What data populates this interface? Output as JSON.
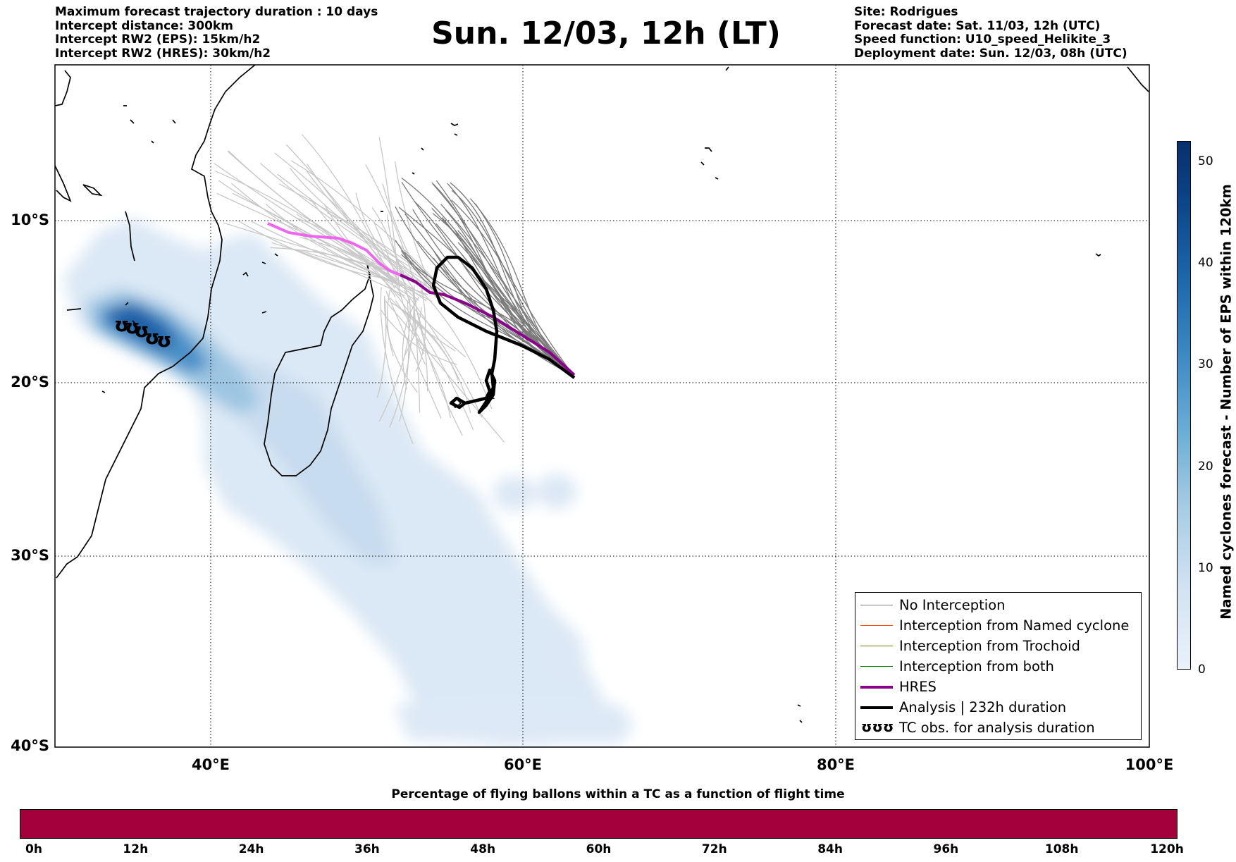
{
  "header": {
    "left_lines": [
      "Maximum forecast trajectory duration : 10 days",
      "Intercept distance: 300km",
      "Intercept RW2 (EPS):  15km/h2",
      "Intercept RW2 (HRES): 30km/h2"
    ],
    "title": "Sun. 12/03, 12h (LT)",
    "right_lines": [
      "Site: Rodrigues",
      "Forecast date: Sat. 11/03, 12h (UTC)",
      "Speed function: U10_speed_Helikite_3",
      "Deployment date: Sun. 12/03, 08h (UTC)"
    ]
  },
  "map": {
    "lat_ticks": [
      "10°S",
      "20°S",
      "30°S",
      "40°S"
    ],
    "lon_ticks": [
      "40°E",
      "60°E",
      "80°E",
      "100°E"
    ],
    "extent": {
      "lon_min": 30,
      "lon_max": 100,
      "lat_min": -40,
      "lat_max": -1.5
    },
    "grid": "dotted",
    "legend": {
      "position": "bottom-right",
      "items": [
        {
          "label": "No Interception",
          "color": "#808080",
          "width": 1.5
        },
        {
          "label": "Interception from Named cyclone",
          "color": "#ff4500",
          "width": 1.5
        },
        {
          "label": "Interception from Trochoid",
          "color": "#808000",
          "width": 1.5
        },
        {
          "label": "Interception from both",
          "color": "#008000",
          "width": 1.5
        },
        {
          "label": "HRES",
          "color": "#8b008b",
          "width": 4
        },
        {
          "label": "Analysis | 232h duration",
          "color": "#000000",
          "width": 4
        },
        {
          "label": "TC obs. for analysis duration",
          "color": "#000000",
          "symbol": "ʊʊʊ"
        }
      ]
    },
    "colors": {
      "land_outline": "#000000",
      "density": "#08306b",
      "eps_track": "#808080",
      "hres_track": "#8b008b",
      "hres_early": "#ee66ee",
      "analysis": "#000000"
    }
  },
  "colorbar": {
    "label": "Named cyclones forecast - Number of EPS within 120km",
    "ticks": [
      "0",
      "10",
      "20",
      "30",
      "40",
      "50"
    ],
    "range": [
      0,
      52
    ]
  },
  "time_bar": {
    "title": "Percentage of flying ballons within a TC as a function of flight time",
    "ticks": [
      "0h",
      "12h",
      "24h",
      "36h",
      "48h",
      "60h",
      "72h",
      "84h",
      "96h",
      "108h",
      "120h"
    ],
    "color": "#a1003d"
  }
}
